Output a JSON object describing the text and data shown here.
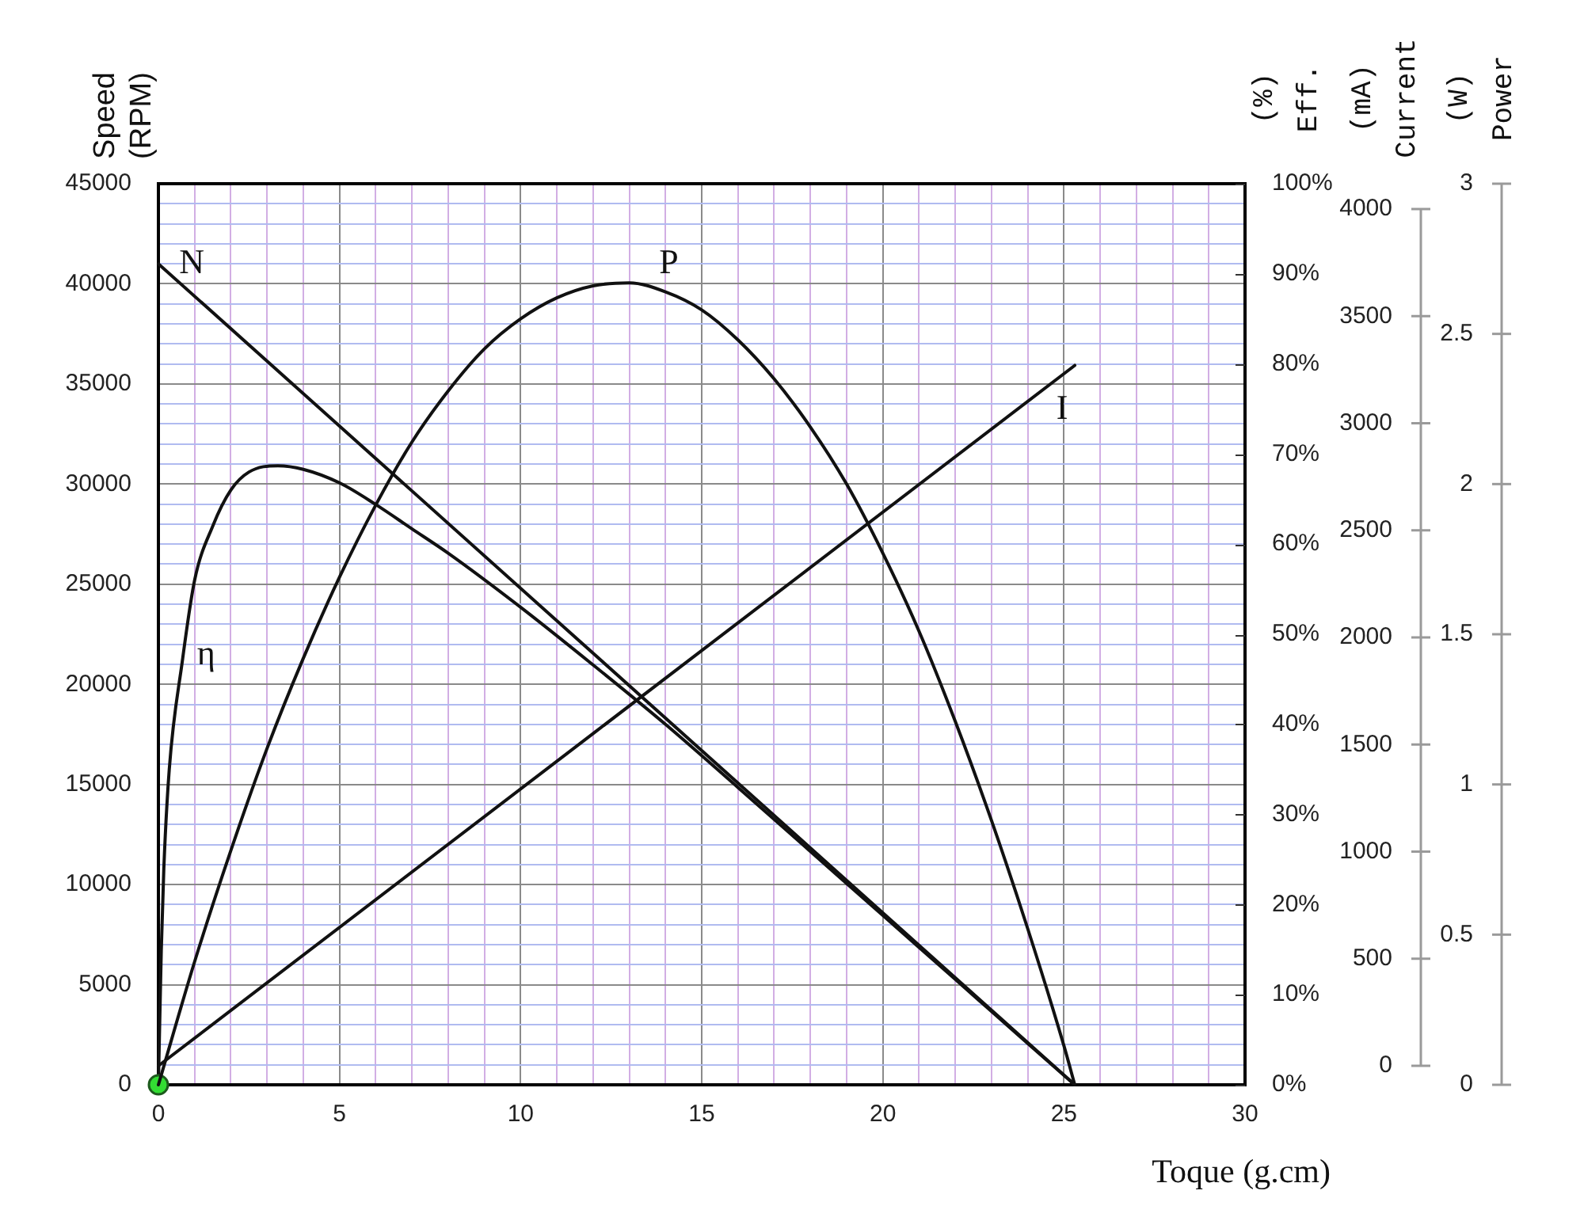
{
  "chart_data": [
    {
      "type": "line",
      "xlabel": "Toque (g.cm)",
      "ylabel": "Speed\n(RPM)",
      "y2label": "(%)\nEff.",
      "y3label": "(mA)\nCurrent",
      "xlim": [
        0,
        30
      ],
      "xticks": [
        0,
        {
          "value": 1,
          "label": null
        },
        {
          "value": 2,
          "label": null
        },
        {
          "value": 3,
          "label": null
        },
        {
          "value": 4,
          "label": null
        },
        5,
        {
          "value": 6,
          "label": null
        },
        {
          "value": 7,
          "label": null
        },
        {
          "value": 8,
          "label": null
        },
        {
          "value": 9,
          "label": null
        },
        10,
        {
          "value": 11,
          "label": null
        },
        {
          "value": 12,
          "label": null
        },
        {
          "value": 13,
          "label": null
        },
        {
          "value": 14,
          "label": null
        },
        15,
        {
          "value": 16,
          "label": null
        },
        {
          "value": 17,
          "label": null
        },
        {
          "value": 18,
          "label": null
        },
        {
          "value": 19,
          "label": null
        },
        20,
        {
          "value": 21,
          "label": null
        },
        {
          "value": 22,
          "label": null
        },
        {
          "value": 23,
          "label": null
        },
        {
          "value": 24,
          "label": null
        },
        25,
        {
          "value": 26,
          "label": null
        },
        {
          "value": 27,
          "label": null
        },
        {
          "value": 28,
          "label": null
        },
        {
          "value": 29,
          "label": null
        },
        30
      ],
      "ylim": [
        0,
        45000
      ],
      "yticks": [
        0,
        {
          "value": 1000,
          "label": null
        },
        {
          "value": 2000,
          "label": null
        },
        {
          "value": 3000,
          "label": null
        },
        {
          "value": 4000,
          "label": null
        },
        5000,
        {
          "value": 6000,
          "label": null
        },
        {
          "value": 7000,
          "label": null
        },
        {
          "value": 8000,
          "label": null
        },
        {
          "value": 9000,
          "label": null
        },
        10000,
        {
          "value": 11000,
          "label": null
        },
        {
          "value": 12000,
          "label": null
        },
        {
          "value": 13000,
          "label": null
        },
        {
          "value": 14000,
          "label": null
        },
        15000,
        {
          "value": 16000,
          "label": null
        },
        {
          "value": 17000,
          "label": null
        },
        {
          "value": 18000,
          "label": null
        },
        {
          "value": 19000,
          "label": null
        },
        20000,
        {
          "value": 21000,
          "label": null
        },
        {
          "value": 22000,
          "label": null
        },
        {
          "value": 23000,
          "label": null
        },
        {
          "value": 24000,
          "label": null
        },
        25000,
        {
          "value": 26000,
          "label": null
        },
        {
          "value": 27000,
          "label": null
        },
        {
          "value": 28000,
          "label": null
        },
        {
          "value": 29000,
          "label": null
        },
        30000,
        {
          "value": 31000,
          "label": null
        },
        {
          "value": 32000,
          "label": null
        },
        {
          "value": 33000,
          "label": null
        },
        {
          "value": 34000,
          "label": null
        },
        35000,
        {
          "value": 36000,
          "label": null
        },
        {
          "value": 37000,
          "label": null
        },
        {
          "value": 38000,
          "label": null
        },
        {
          "value": 39000,
          "label": null
        },
        40000,
        {
          "value": 41000,
          "label": null
        },
        {
          "value": 42000,
          "label": null
        },
        {
          "value": 43000,
          "label": null
        },
        {
          "value": 44000,
          "label": null
        },
        45000
      ],
      "y2lim": [
        0,
        100
      ],
      "y2ticks": [
        {
          "value": 0,
          "label": "0%"
        },
        {
          "value": 10,
          "label": "10%"
        },
        {
          "value": 20,
          "label": "20%"
        },
        {
          "value": 30,
          "label": "30%"
        },
        {
          "value": 40,
          "label": "40%"
        },
        {
          "value": 50,
          "label": "50%"
        },
        {
          "value": 60,
          "label": "60%"
        },
        {
          "value": 70,
          "label": "70%"
        },
        {
          "value": 80,
          "label": "80%"
        },
        {
          "value": 90,
          "label": "90%"
        },
        {
          "value": 100,
          "label": "100%"
        }
      ],
      "y3lim": [
        0,
        4000
      ],
      "y3ticks": [
        0,
        500,
        1000,
        1500,
        2000,
        2500,
        3000,
        3500,
        4000
      ],
      "grid": true,
      "legend": false,
      "marker": "none",
      "line_style": "solid",
      "series": [
        {
          "name": "N",
          "color": "#111111",
          "x": [
            0,
            25.3
          ],
          "values": [
            41000,
            0
          ]
        },
        {
          "name": "η",
          "color": "#111111",
          "axis": "y2",
          "x": [
            0,
            0.08,
            0.15,
            0.3,
            0.66,
            1,
            1.5,
            2,
            2.5,
            3.3,
            4,
            5,
            6,
            7,
            8,
            10,
            12,
            14,
            16,
            18,
            20,
            22,
            24,
            25.3
          ],
          "values": [
            0,
            15,
            24,
            35,
            47,
            56,
            62,
            66,
            68,
            68.7,
            68.3,
            66.8,
            64.4,
            61.7,
            59,
            53,
            46.6,
            40,
            33,
            25.9,
            18.8,
            11.7,
            4.6,
            0
          ]
        },
        {
          "name": "I",
          "color": "#111111",
          "axis": "y3",
          "x": [
            0,
            25.3
          ],
          "values": [
            0,
            3270
          ]
        }
      ]
    },
    {
      "type": "line",
      "ylabel": "(W)\nPower",
      "xlim": [
        0,
        30
      ],
      "ylim": [
        0,
        3
      ],
      "yticks": [
        0,
        0.5,
        1,
        1.5,
        2,
        2.5,
        3
      ],
      "tick_labels": "y",
      "marker": "none",
      "line_style": "solid",
      "series": [
        {
          "name": "P",
          "color": "#111111",
          "x": [
            0,
            1,
            2,
            3,
            4,
            5,
            6,
            7,
            8,
            9,
            10,
            11,
            12,
            13,
            14,
            15,
            16,
            17,
            18,
            19,
            20,
            21,
            22,
            23,
            24,
            25,
            25.3
          ],
          "values": [
            0,
            0.41,
            0.78,
            1.12,
            1.42,
            1.69,
            1.93,
            2.14,
            2.31,
            2.45,
            2.55,
            2.62,
            2.66,
            2.67,
            2.64,
            2.58,
            2.48,
            2.35,
            2.19,
            2.0,
            1.77,
            1.51,
            1.21,
            0.88,
            0.52,
            0.13,
            0
          ]
        },
        {
          "type": "scatter",
          "color": "#33dd33",
          "marker": "circle",
          "x": [
            0
          ],
          "values": [
            0
          ]
        }
      ]
    }
  ]
}
